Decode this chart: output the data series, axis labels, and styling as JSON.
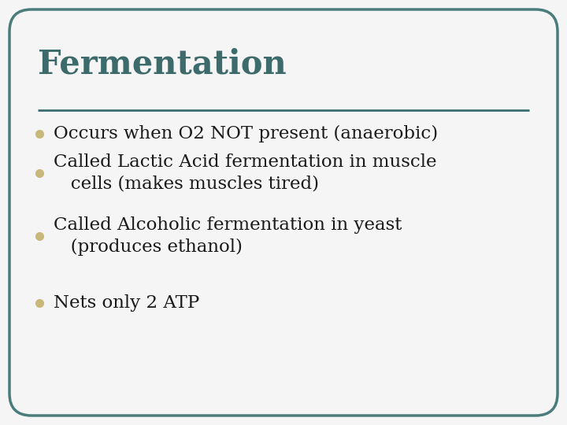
{
  "title": "Fermentation",
  "title_color": "#3d6b6b",
  "title_fontsize": 30,
  "line_color": "#3d6b6b",
  "background_color": "#f5f5f5",
  "border_color": "#4a7c7c",
  "bullet_color": "#c8b87a",
  "text_color": "#1a1a1a",
  "bullet_fontsize": 16.5,
  "bullet_lines": [
    [
      "Occurs when O2 NOT present (anaerobic)"
    ],
    [
      "Called Lactic Acid fermentation in muscle",
      "   cells (makes muscles tired)"
    ],
    [
      "Called Alcoholic fermentation in yeast",
      "   (produces ethanol)"
    ],
    [
      "Nets only 2 ATP"
    ]
  ]
}
